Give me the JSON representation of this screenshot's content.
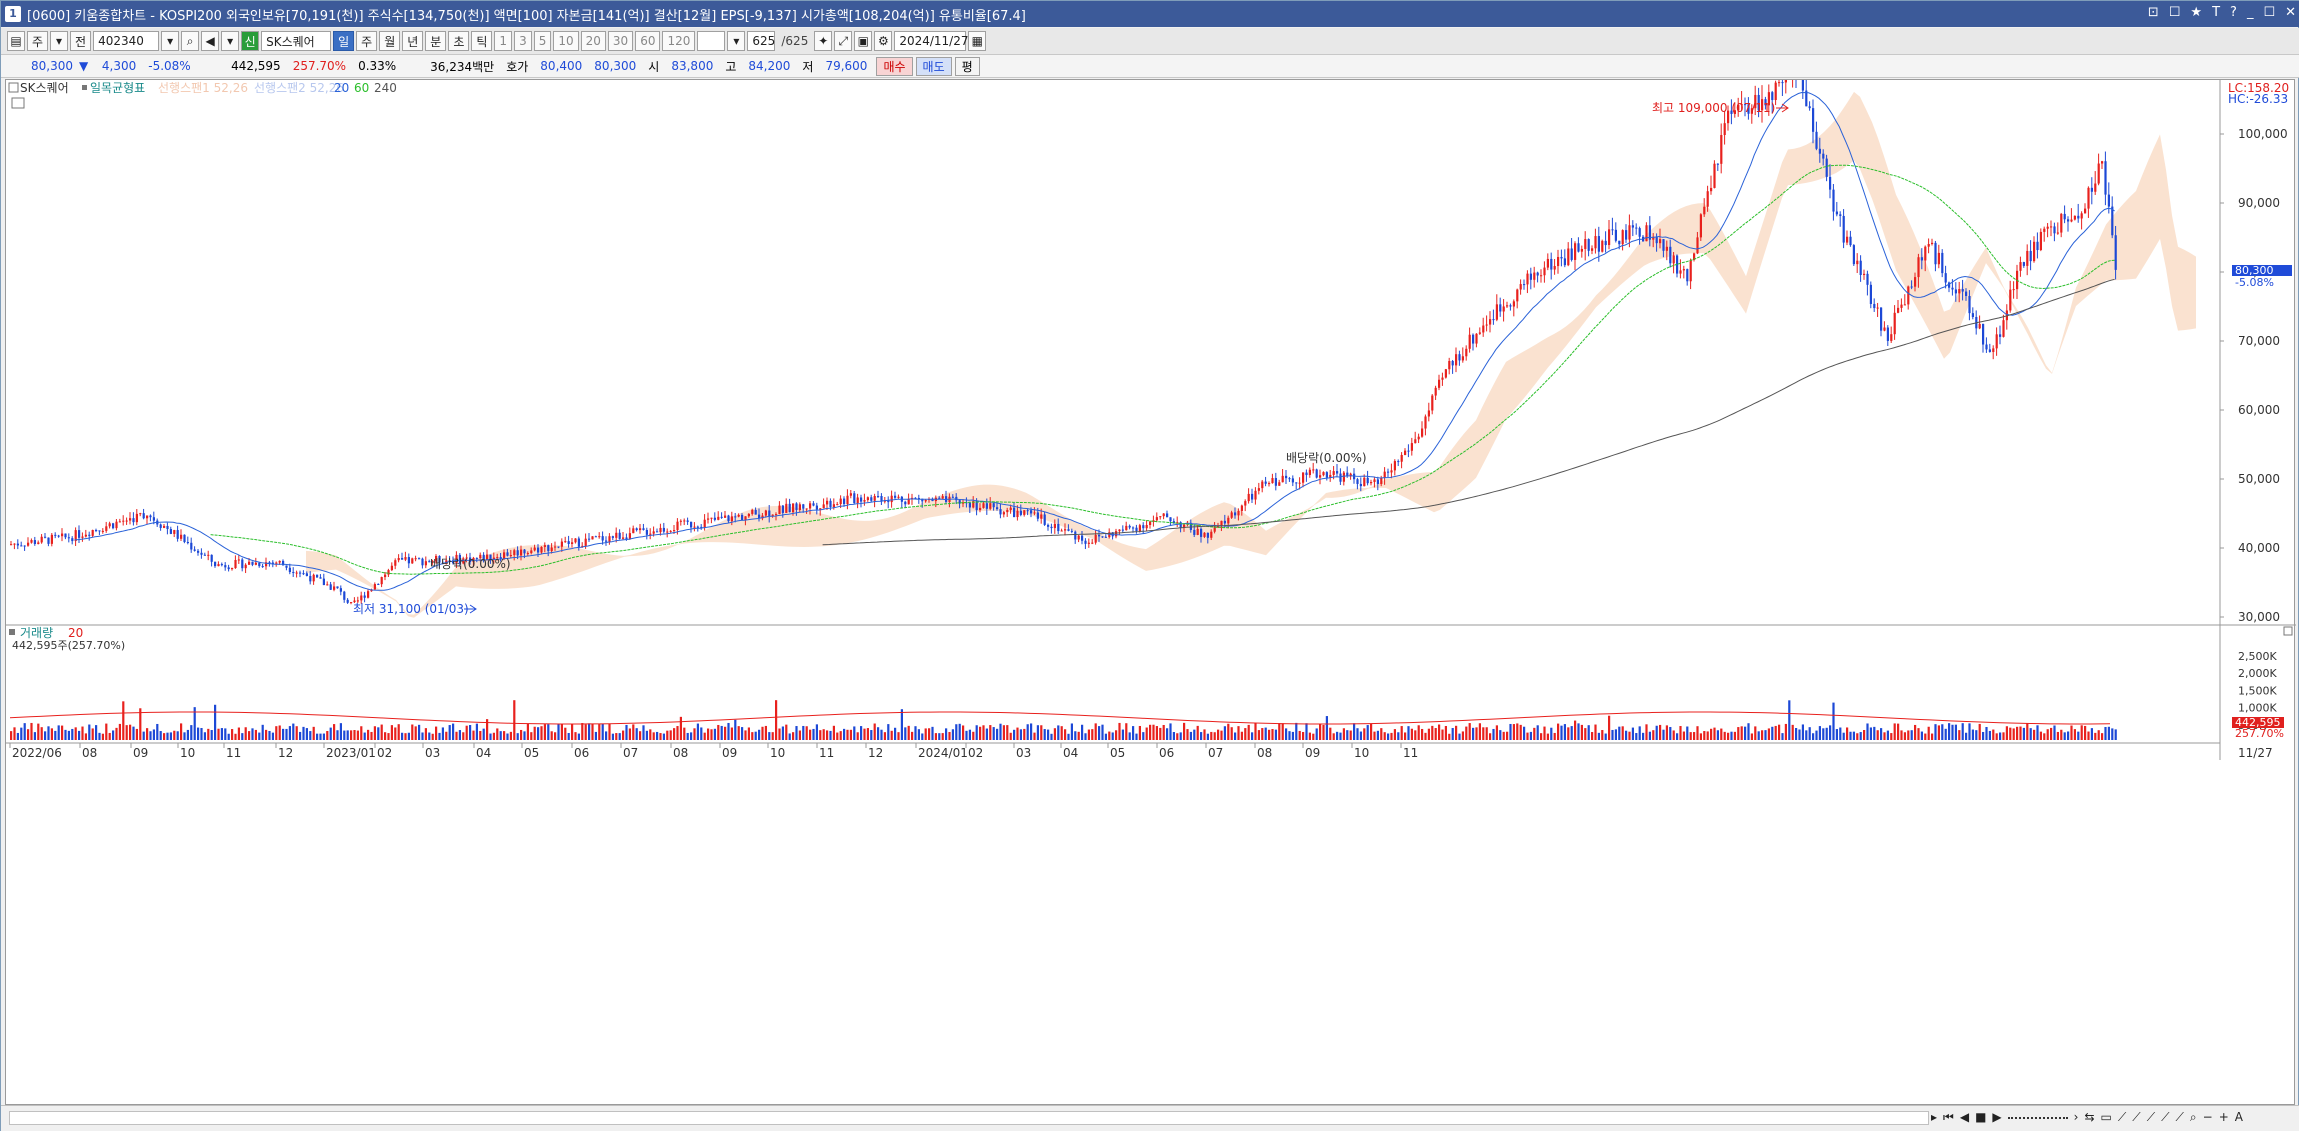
{
  "window": {
    "app_number": "1",
    "title": "[0600] 키움종합차트 - KOSPI200 외국인보유[70,191(천)] 주식수[134,750(천)] 액면[100] 자본금[141(억)] 결산[12월] EPS[-9,137] 시가총액[108,204(억)] 유통비율[67.4]",
    "controls": [
      "⊡",
      "☐",
      "★",
      "T",
      "?",
      "_",
      "☐",
      "✕"
    ]
  },
  "toolbar": {
    "period_label": "주",
    "type_label": "전",
    "code": "402340",
    "name": "SK스퀘어",
    "tabs": [
      "일",
      "주",
      "월",
      "년",
      "분",
      "초",
      "틱"
    ],
    "selected_tab": "일",
    "intervals": [
      "1",
      "3",
      "5",
      "10",
      "20",
      "30",
      "60",
      "120"
    ],
    "count": "625",
    "count_total": "/625",
    "date": "2024/11/27"
  },
  "quote": {
    "price": "80,300",
    "arrow": "▼",
    "change": "4,300",
    "change_pct": "-5.08%",
    "volume": "442,595",
    "volume_pct": "257.70%",
    "turnover": "0.33%",
    "amount": "36,234백만",
    "ask_label": "호가",
    "ask1": "80,400",
    "ask2": "80,300",
    "open_label": "시",
    "open": "83,800",
    "high_label": "고",
    "high": "84,200",
    "low_label": "저",
    "low": "79,600",
    "buy_label": "매수",
    "sell_label": "매도",
    "extra_label": "평"
  },
  "price_pane": {
    "stock_name": "SK스퀘어",
    "ichimoku_label": "일목균형표",
    "span1_label": "선행스팬1 52,26",
    "span2_label": "선행스팬2 52,26",
    "ma_labels": [
      "20",
      "60",
      "240"
    ],
    "lc_label": "LC:158.20",
    "hc_label": "HC:-26.33",
    "high_annotation": "최고 109,000 (07/11)",
    "low_annotation": "최저 31,100 (01/03)",
    "dividend1": "배당락(0.00%)",
    "dividend2": "배당락(0.00%)",
    "last_price_tag": "80,300",
    "last_pct_tag": "-5.08%",
    "y_ticks": [
      "100,000",
      "90,000",
      "80,000",
      "70,000",
      "60,000",
      "50,000",
      "40,000",
      "30,000"
    ]
  },
  "volume_pane": {
    "title": "거래량",
    "ma": "20",
    "subtitle": "442,595주(257.70%)",
    "y_ticks": [
      "2,500K",
      "2,000K",
      "1,500K",
      "1,000K",
      "500K"
    ],
    "last_tag": "442,595",
    "last_pct": "257.70%"
  },
  "x_axis": [
    "2022/06",
    "08",
    "09",
    "10",
    "11",
    "12",
    "2023/01",
    "02",
    "03",
    "04",
    "05",
    "06",
    "07",
    "08",
    "09",
    "10",
    "11",
    "12",
    "2024/01",
    "02",
    "03",
    "04",
    "05",
    "06",
    "07",
    "08",
    "09",
    "10",
    "11"
  ],
  "x_axis_right": "11/27",
  "colors": {
    "up": "#e8211d",
    "down": "#1c48d6",
    "ma20": "#2a62d8",
    "ma60": "#2bbf2b",
    "ma240": "#555555",
    "cloud_up": "#f8d8c0",
    "cloud_down": "#c8d4f4"
  }
}
